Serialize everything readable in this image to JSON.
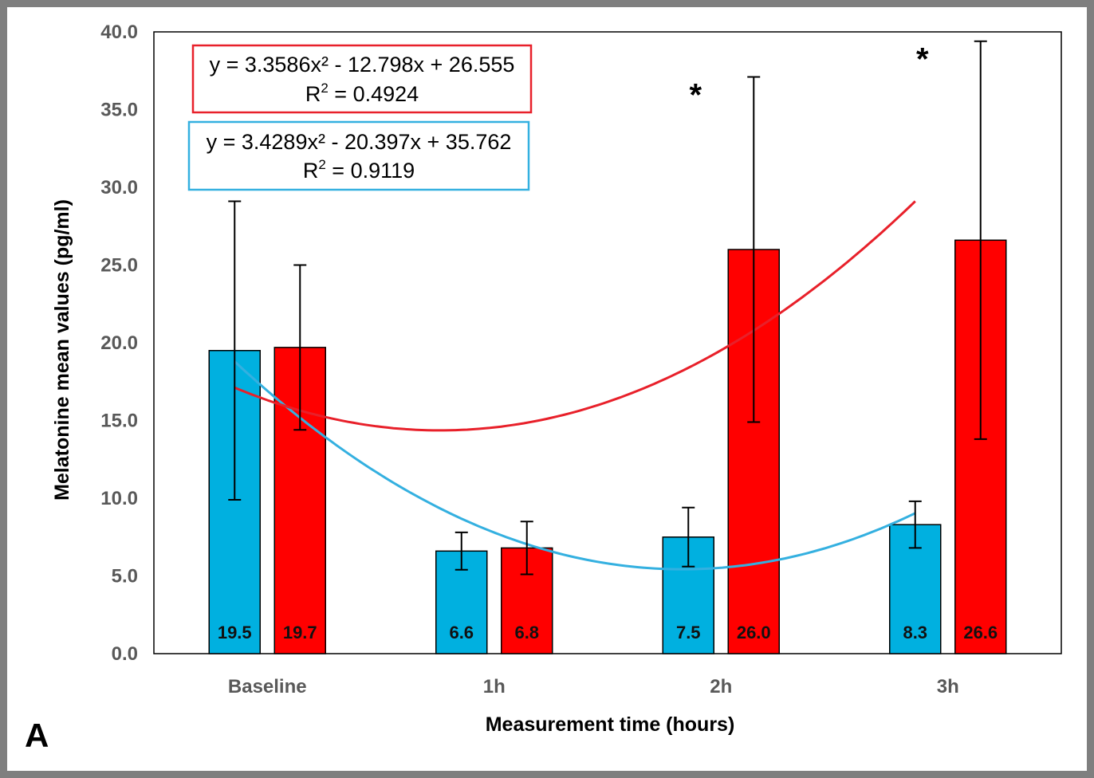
{
  "chart_data": {
    "type": "bar",
    "panel_label": "A",
    "xlabel": "Measurement time (hours)",
    "ylabel": "Melatonine mean values (pg/ml)",
    "ylim": [
      0,
      40
    ],
    "yticks": [
      "0.0",
      "5.0",
      "10.0",
      "15.0",
      "20.0",
      "25.0",
      "30.0",
      "35.0",
      "40.0"
    ],
    "categories": [
      "Baseline",
      "1h",
      "2h",
      "3h"
    ],
    "grid": false,
    "series": [
      {
        "name": "blue",
        "color": "#00b0e0",
        "values": [
          19.5,
          6.6,
          7.5,
          8.3
        ],
        "labels": [
          "19.5",
          "6.6",
          "7.5",
          "8.3"
        ],
        "error": [
          9.6,
          1.2,
          1.9,
          1.5
        ],
        "trend": {
          "a": 3.4289,
          "b": -20.397,
          "c": 35.762,
          "color": "#34b0e0",
          "equation": "y = 3.4289x² - 20.397x + 35.762",
          "r2_prefix": "R",
          "r2_sup": "2",
          "r2_value": " = 0.9119"
        }
      },
      {
        "name": "red",
        "color": "#ff0000",
        "values": [
          19.7,
          6.8,
          26.0,
          26.6
        ],
        "labels": [
          "19.7",
          "6.8",
          "26.0",
          "26.6"
        ],
        "error": [
          5.3,
          1.7,
          11.1,
          12.8
        ],
        "trend": {
          "a": 3.3586,
          "b": -12.798,
          "c": 26.555,
          "color": "#e8202a",
          "equation": "y = 3.3586x² - 12.798x + 26.555",
          "r2_prefix": "R",
          "r2_sup": "2",
          "r2_value": " = 0.4924"
        }
      }
    ],
    "significance": [
      {
        "category": "2h",
        "symbol": "*"
      },
      {
        "category": "3h",
        "symbol": "*"
      }
    ]
  }
}
